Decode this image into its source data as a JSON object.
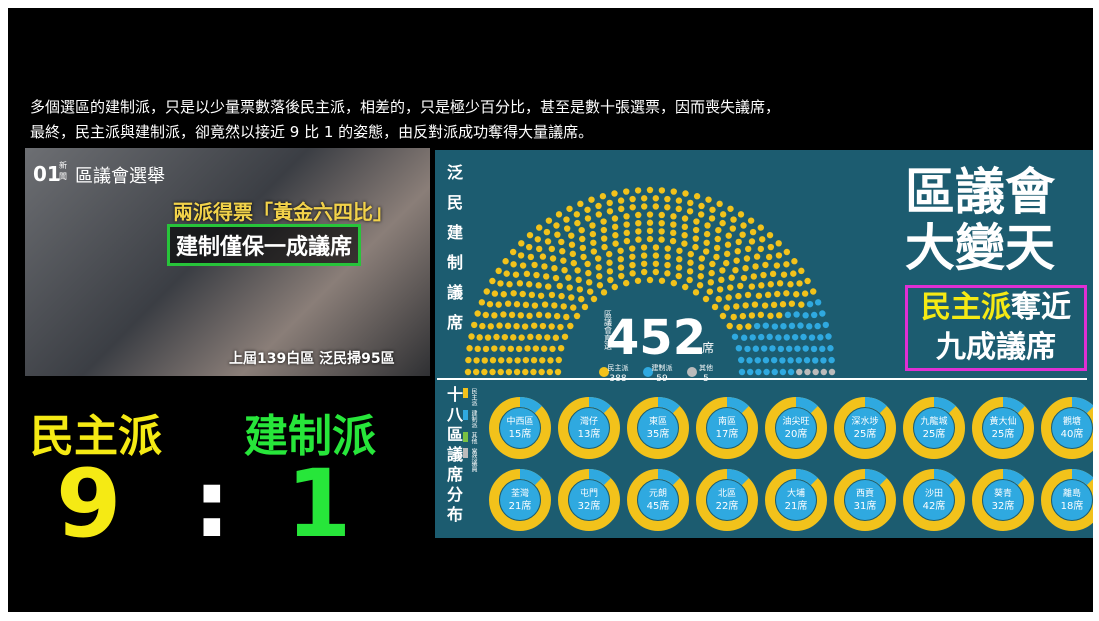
{
  "caption": {
    "lines": [
      "多個選區的建制派，只是以少量票數落後民主派，相差的，只是極少百分比，甚至是數十張選票，因而喪失議席，",
      "最終，民主派與建制派，卻竟然以接近 9 比 1 的姿態，由反對派成功奪得大量議席。"
    ]
  },
  "photo": {
    "logo": "01",
    "logo_sub": "新聞",
    "tag": "區議會選舉",
    "headline": "兩派得票「黃金六四比」",
    "subhead": "建制僅保一成議席",
    "footnote": "上屆139白區 泛民掃95區"
  },
  "score": {
    "left_label": "民主派",
    "right_label": "建制派",
    "left_value": "9",
    "separator": ":",
    "right_value": "1"
  },
  "infographic": {
    "side_title_top": "泛民建制議席",
    "side_title_bottom": "十八區議席分布",
    "hemicycle": {
      "caption": "區議會直選",
      "total": 452,
      "unit": "席",
      "groups": [
        {
          "label": "民主派",
          "count": 388,
          "color": "#f2c21b"
        },
        {
          "label": "建制派",
          "count": 59,
          "color": "#2fa9e0"
        },
        {
          "label": "其他",
          "count": 5,
          "color": "#bbbbbb"
        }
      ]
    },
    "headline": [
      "區議會",
      "大變天"
    ],
    "highlight": {
      "accent": "民主派",
      "rest": "奪近",
      "line2": "九成議席"
    },
    "legend": [
      "民主派",
      "建制派",
      "其他",
      "當然議員"
    ],
    "districts": [
      {
        "name": "中西區",
        "seats": "15席"
      },
      {
        "name": "灣仔",
        "seats": "13席"
      },
      {
        "name": "東區",
        "seats": "35席"
      },
      {
        "name": "南區",
        "seats": "17席"
      },
      {
        "name": "油尖旺",
        "seats": "20席"
      },
      {
        "name": "深水埗",
        "seats": "25席"
      },
      {
        "name": "九龍城",
        "seats": "25席"
      },
      {
        "name": "黃大仙",
        "seats": "25席"
      },
      {
        "name": "觀塘",
        "seats": "40席"
      },
      {
        "name": "荃灣",
        "seats": "21席"
      },
      {
        "name": "屯門",
        "seats": "32席"
      },
      {
        "name": "元朗",
        "seats": "45席"
      },
      {
        "name": "北區",
        "seats": "22席"
      },
      {
        "name": "大埔",
        "seats": "21席"
      },
      {
        "name": "西貢",
        "seats": "31席"
      },
      {
        "name": "沙田",
        "seats": "42席"
      },
      {
        "name": "葵青",
        "seats": "32席"
      },
      {
        "name": "離島",
        "seats": "18席"
      }
    ]
  }
}
